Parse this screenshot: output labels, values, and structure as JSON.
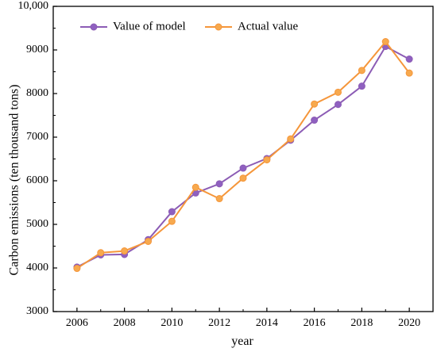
{
  "chart_data": {
    "type": "line",
    "title": "",
    "xlabel": "year",
    "ylabel": "Carbon emissions (ten thousand tons)",
    "xlim": [
      2005,
      2021
    ],
    "ylim": [
      3000,
      10000
    ],
    "x_ticks": [
      2006,
      2008,
      2010,
      2012,
      2014,
      2016,
      2018,
      2020
    ],
    "x_tick_labels": [
      "2006",
      "2008",
      "2010",
      "2012",
      "2014",
      "2016",
      "2018",
      "2020"
    ],
    "y_ticks": [
      3000,
      4000,
      5000,
      6000,
      7000,
      8000,
      9000,
      10000
    ],
    "y_tick_labels": [
      "3000",
      "4000",
      "5000",
      "6000",
      "7000",
      "8000",
      "9000",
      "10,000"
    ],
    "grid": false,
    "legend_position": "top-left",
    "x": [
      2006,
      2007,
      2008,
      2009,
      2010,
      2011,
      2012,
      2013,
      2014,
      2015,
      2016,
      2017,
      2018,
      2019,
      2020
    ],
    "series": [
      {
        "name": "Value of model",
        "color": "#8c5cb5",
        "marker_color": "#8f60c0",
        "values": [
          4020,
          4300,
          4310,
          4650,
          5290,
          5720,
          5930,
          6290,
          6510,
          6930,
          7390,
          7750,
          8170,
          9080,
          8790
        ]
      },
      {
        "name": "Actual value",
        "color": "#f5963a",
        "marker_color": "#f7a94e",
        "values": [
          3990,
          4350,
          4390,
          4610,
          5070,
          5850,
          5590,
          6060,
          6480,
          6960,
          7760,
          8030,
          8530,
          9190,
          8470
        ]
      }
    ]
  }
}
